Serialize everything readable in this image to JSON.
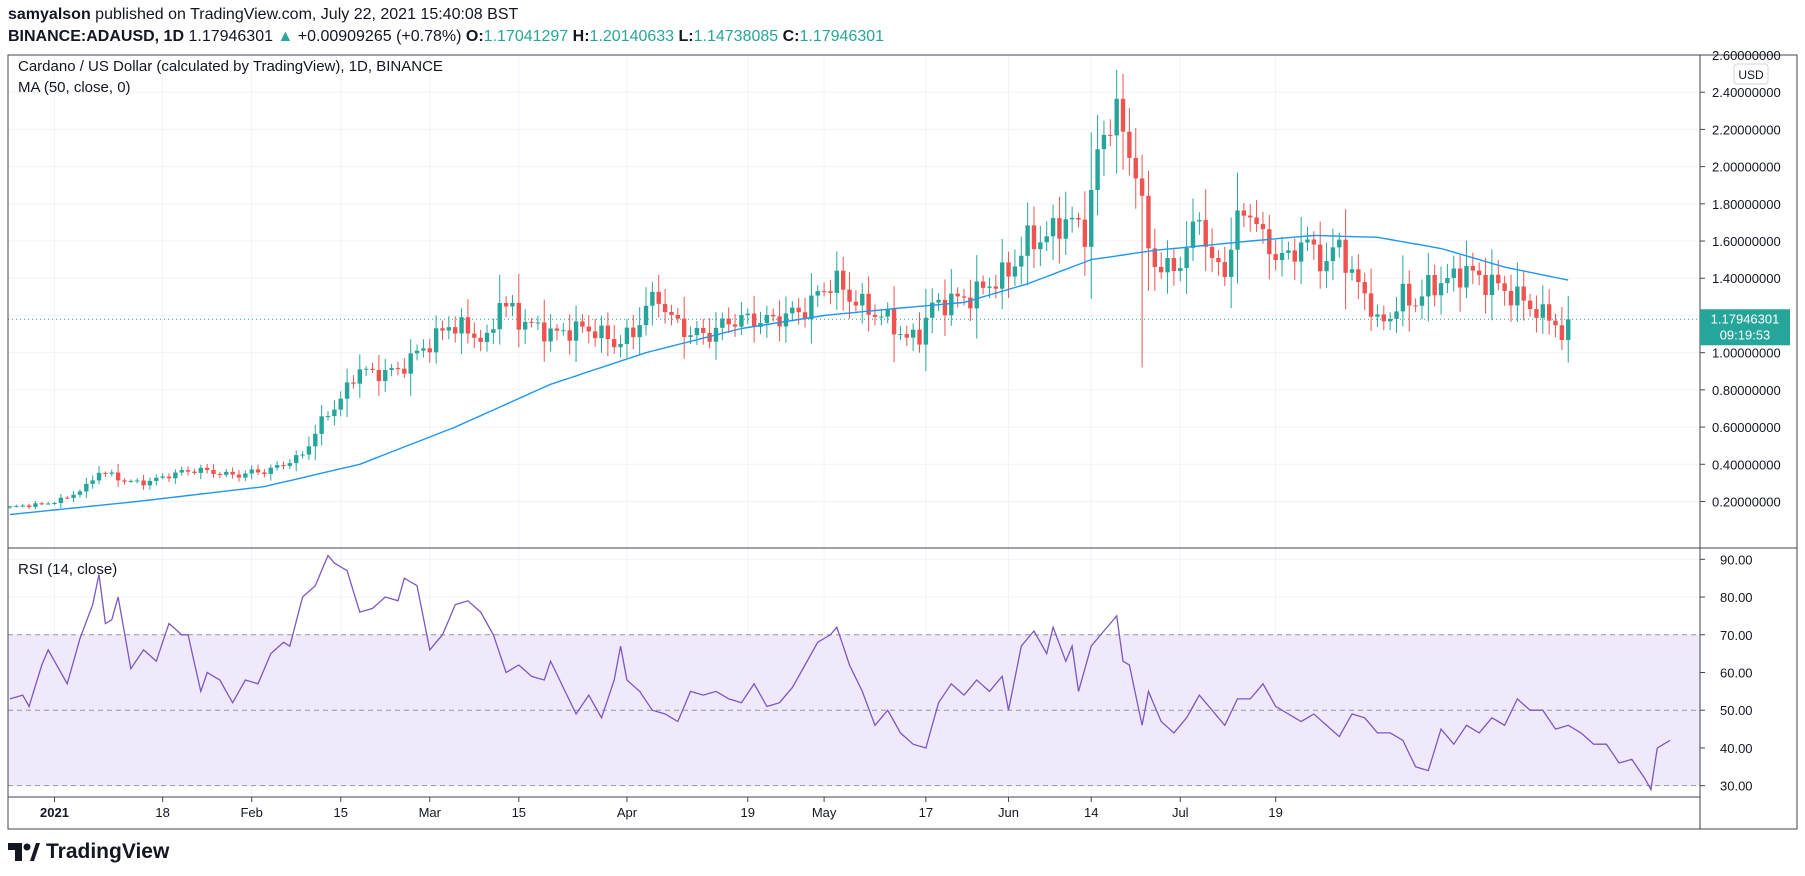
{
  "header": {
    "author": "samyalson",
    "published": "published on TradingView.com, July 22, 2021 15:40:08 BST",
    "symbol": "BINANCE:ADAUSD, 1D",
    "last": "1.17946301",
    "change_arrow": "▲",
    "change": "+0.00909265 (+0.78%)",
    "o_label": "O:",
    "o": "1.17041297",
    "h_label": "H:",
    "h": "1.20140633",
    "l_label": "L:",
    "l": "1.14738085",
    "c_label": "C:",
    "c": "1.17946301"
  },
  "legend": {
    "title": "Cardano / US Dollar (calculated by TradingView), 1D, BINANCE",
    "ma": "MA (50, close, 0)",
    "rsi": "RSI (14, close)",
    "currency": "USD",
    "last_price": "1.17946301",
    "countdown": "09:19:53"
  },
  "brand": {
    "name": "TradingView",
    "icon": "tradingview-logo"
  },
  "colors": {
    "up": "#26a69a",
    "down": "#ef5350",
    "ma": "#2196f3",
    "rsi": "#7e57c2",
    "rsi_band": "#efe9fb"
  },
  "chart_data": [
    {
      "type": "candlestick",
      "title": "Cardano / US Dollar (calculated by TradingView), 1D, BINANCE",
      "x_ticks": [
        "2021",
        "18",
        "Feb",
        "15",
        "Mar",
        "15",
        "Apr",
        "19",
        "May",
        "17",
        "Jun",
        "14",
        "Jul",
        "19"
      ],
      "y_ticks": [
        "0.20000000",
        "0.40000000",
        "0.60000000",
        "0.80000000",
        "1.00000000",
        "1.20000000",
        "1.40000000",
        "1.60000000",
        "1.80000000",
        "2.00000000",
        "2.20000000",
        "2.40000000",
        "2.60000000"
      ],
      "ylim": [
        -0.05,
        2.6
      ],
      "grid": true,
      "close_anchors": [
        [
          0,
          0.17
        ],
        [
          3,
          0.18
        ],
        [
          6,
          0.19
        ],
        [
          9,
          0.22
        ],
        [
          12,
          0.28
        ],
        [
          14,
          0.36
        ],
        [
          16,
          0.34
        ],
        [
          18,
          0.31
        ],
        [
          21,
          0.3
        ],
        [
          24,
          0.33
        ],
        [
          27,
          0.36
        ],
        [
          30,
          0.37
        ],
        [
          33,
          0.35
        ],
        [
          36,
          0.34
        ],
        [
          38,
          0.36
        ],
        [
          40,
          0.36
        ],
        [
          43,
          0.4
        ],
        [
          46,
          0.45
        ],
        [
          49,
          0.63
        ],
        [
          52,
          0.75
        ],
        [
          55,
          0.92
        ],
        [
          57,
          0.88
        ],
        [
          59,
          0.9
        ],
        [
          61,
          0.9
        ],
        [
          63,
          0.97
        ],
        [
          66,
          1.05
        ],
        [
          69,
          1.15
        ],
        [
          72,
          1.12
        ],
        [
          75,
          1.05
        ],
        [
          77,
          1.28
        ],
        [
          80,
          1.18
        ],
        [
          83,
          1.13
        ],
        [
          86,
          1.1
        ],
        [
          89,
          1.13
        ],
        [
          92,
          1.12
        ],
        [
          95,
          1.05
        ],
        [
          98,
          1.1
        ],
        [
          100,
          1.25
        ],
        [
          102,
          1.3
        ],
        [
          104,
          1.18
        ],
        [
          107,
          1.1
        ],
        [
          110,
          1.1
        ],
        [
          113,
          1.17
        ],
        [
          116,
          1.18
        ],
        [
          119,
          1.17
        ],
        [
          122,
          1.2
        ],
        [
          125,
          1.23
        ],
        [
          128,
          1.35
        ],
        [
          130,
          1.38
        ],
        [
          132,
          1.3
        ],
        [
          135,
          1.23
        ],
        [
          138,
          1.18
        ],
        [
          141,
          1.07
        ],
        [
          143,
          1.1
        ],
        [
          145,
          1.25
        ],
        [
          148,
          1.28
        ],
        [
          151,
          1.3
        ],
        [
          154,
          1.37
        ],
        [
          157,
          1.43
        ],
        [
          160,
          1.6
        ],
        [
          163,
          1.62
        ],
        [
          166,
          1.72
        ],
        [
          169,
          1.65
        ],
        [
          171,
          2.05
        ],
        [
          173,
          2.27
        ],
        [
          174,
          2.3
        ],
        [
          175,
          2.15
        ],
        [
          177,
          2.0
        ],
        [
          179,
          1.55
        ],
        [
          181,
          1.45
        ],
        [
          183,
          1.45
        ],
        [
          185,
          1.55
        ],
        [
          187,
          1.75
        ],
        [
          189,
          1.47
        ],
        [
          191,
          1.45
        ],
        [
          193,
          1.7
        ],
        [
          195,
          1.78
        ],
        [
          197,
          1.6
        ],
        [
          199,
          1.53
        ],
        [
          201,
          1.5
        ],
        [
          203,
          1.6
        ],
        [
          205,
          1.55
        ],
        [
          207,
          1.47
        ],
        [
          209,
          1.6
        ],
        [
          211,
          1.4
        ],
        [
          213,
          1.33
        ],
        [
          215,
          1.15
        ],
        [
          217,
          1.2
        ],
        [
          219,
          1.3
        ],
        [
          221,
          1.27
        ],
        [
          223,
          1.35
        ],
        [
          225,
          1.38
        ],
        [
          227,
          1.4
        ],
        [
          229,
          1.45
        ],
        [
          231,
          1.39
        ],
        [
          233,
          1.38
        ],
        [
          235,
          1.33
        ],
        [
          237,
          1.3
        ],
        [
          239,
          1.25
        ],
        [
          241,
          1.2
        ],
        [
          243,
          1.17
        ],
        [
          244,
          1.08
        ],
        [
          245,
          1.18
        ]
      ],
      "ma_anchors": [
        [
          0,
          0.13
        ],
        [
          20,
          0.2
        ],
        [
          40,
          0.28
        ],
        [
          55,
          0.4
        ],
        [
          70,
          0.6
        ],
        [
          85,
          0.83
        ],
        [
          100,
          1.0
        ],
        [
          115,
          1.13
        ],
        [
          128,
          1.2
        ],
        [
          140,
          1.24
        ],
        [
          150,
          1.27
        ],
        [
          160,
          1.37
        ],
        [
          170,
          1.5
        ],
        [
          180,
          1.55
        ],
        [
          195,
          1.6
        ],
        [
          205,
          1.63
        ],
        [
          215,
          1.62
        ],
        [
          225,
          1.56
        ],
        [
          235,
          1.46
        ],
        [
          245,
          1.39
        ]
      ],
      "last_value": 1.17946301
    },
    {
      "type": "line",
      "title": "RSI (14, close)",
      "y_ticks": [
        "30.00",
        "40.00",
        "50.00",
        "60.00",
        "70.00",
        "80.00",
        "90.00"
      ],
      "ylim": [
        27,
        93
      ],
      "bands": [
        30,
        50,
        70
      ],
      "values_anchors": [
        [
          0,
          53
        ],
        [
          2,
          54
        ],
        [
          3,
          51
        ],
        [
          5,
          62
        ],
        [
          6,
          66
        ],
        [
          8,
          60
        ],
        [
          9,
          57
        ],
        [
          11,
          69
        ],
        [
          13,
          78
        ],
        [
          14,
          86
        ],
        [
          15,
          73
        ],
        [
          16,
          74
        ],
        [
          17,
          80
        ],
        [
          19,
          61
        ],
        [
          21,
          66
        ],
        [
          23,
          63
        ],
        [
          25,
          73
        ],
        [
          27,
          70
        ],
        [
          28,
          70
        ],
        [
          30,
          55
        ],
        [
          31,
          60
        ],
        [
          33,
          58
        ],
        [
          35,
          52
        ],
        [
          37,
          58
        ],
        [
          39,
          57
        ],
        [
          41,
          65
        ],
        [
          43,
          68
        ],
        [
          44,
          67
        ],
        [
          46,
          80
        ],
        [
          48,
          83
        ],
        [
          50,
          91
        ],
        [
          51,
          89
        ],
        [
          53,
          87
        ],
        [
          55,
          76
        ],
        [
          57,
          77
        ],
        [
          59,
          80
        ],
        [
          61,
          79
        ],
        [
          62,
          85
        ],
        [
          64,
          83
        ],
        [
          66,
          66
        ],
        [
          68,
          70
        ],
        [
          70,
          78
        ],
        [
          72,
          79
        ],
        [
          74,
          76
        ],
        [
          76,
          70
        ],
        [
          78,
          60
        ],
        [
          80,
          62
        ],
        [
          82,
          59
        ],
        [
          84,
          58
        ],
        [
          85,
          63
        ],
        [
          87,
          56
        ],
        [
          89,
          49
        ],
        [
          91,
          54
        ],
        [
          93,
          48
        ],
        [
          95,
          58
        ],
        [
          96,
          67
        ],
        [
          97,
          58
        ],
        [
          99,
          55
        ],
        [
          101,
          50
        ],
        [
          103,
          49
        ],
        [
          105,
          47
        ],
        [
          107,
          55
        ],
        [
          109,
          54
        ],
        [
          111,
          55
        ],
        [
          113,
          53
        ],
        [
          115,
          52
        ],
        [
          117,
          57
        ],
        [
          119,
          51
        ],
        [
          121,
          52
        ],
        [
          123,
          56
        ],
        [
          125,
          62
        ],
        [
          127,
          68
        ],
        [
          129,
          70
        ],
        [
          130,
          72
        ],
        [
          132,
          62
        ],
        [
          134,
          55
        ],
        [
          136,
          46
        ],
        [
          138,
          50
        ],
        [
          140,
          44
        ],
        [
          142,
          41
        ],
        [
          144,
          40
        ],
        [
          146,
          52
        ],
        [
          148,
          57
        ],
        [
          150,
          54
        ],
        [
          152,
          58
        ],
        [
          154,
          55
        ],
        [
          156,
          59
        ],
        [
          157,
          50
        ],
        [
          159,
          67
        ],
        [
          161,
          71
        ],
        [
          163,
          65
        ],
        [
          164,
          72
        ],
        [
          166,
          63
        ],
        [
          167,
          67
        ],
        [
          168,
          55
        ],
        [
          170,
          67
        ],
        [
          172,
          71
        ],
        [
          174,
          75
        ],
        [
          175,
          63
        ],
        [
          176,
          62
        ],
        [
          178,
          46
        ],
        [
          179,
          55
        ],
        [
          181,
          47
        ],
        [
          183,
          44
        ],
        [
          185,
          48
        ],
        [
          187,
          54
        ],
        [
          189,
          50
        ],
        [
          191,
          46
        ],
        [
          193,
          53
        ],
        [
          195,
          53
        ],
        [
          197,
          57
        ],
        [
          199,
          51
        ],
        [
          201,
          49
        ],
        [
          203,
          47
        ],
        [
          205,
          49
        ],
        [
          207,
          46
        ],
        [
          209,
          43
        ],
        [
          211,
          49
        ],
        [
          213,
          48
        ],
        [
          215,
          44
        ],
        [
          217,
          44
        ],
        [
          219,
          42
        ],
        [
          221,
          35
        ],
        [
          223,
          34
        ],
        [
          225,
          45
        ],
        [
          227,
          41
        ],
        [
          229,
          46
        ],
        [
          231,
          44
        ],
        [
          233,
          48
        ],
        [
          235,
          46
        ],
        [
          237,
          53
        ],
        [
          239,
          50
        ],
        [
          241,
          50
        ],
        [
          243,
          45
        ],
        [
          245,
          46
        ],
        [
          247,
          44
        ],
        [
          249,
          41
        ],
        [
          251,
          41
        ],
        [
          253,
          36
        ],
        [
          255,
          37
        ],
        [
          257,
          32
        ],
        [
          258,
          29
        ],
        [
          259,
          40
        ],
        [
          261,
          42
        ]
      ],
      "last_value": 41.5
    }
  ]
}
